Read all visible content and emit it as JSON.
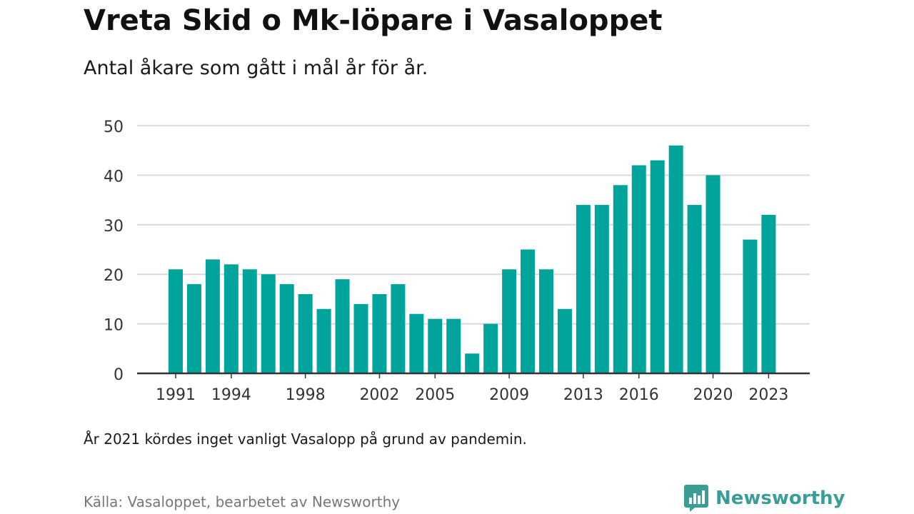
{
  "title": "Vreta Skid o Mk-löpare i Vasaloppet",
  "subtitle": "Antal åkare som gått i mål år för år.",
  "note": "År 2021 kördes inget vanligt Vasalopp på grund av pandemin.",
  "source": "Källa: Vasaloppet, bearbetet av Newsworthy",
  "brand": {
    "name": "Newsworthy",
    "icon": "newsworthy-logo-icon"
  },
  "colors": {
    "bar": "#00a49a",
    "grid": "#d9d9d9",
    "axis": "#333333",
    "brand": "#3a9e97"
  },
  "chart_data": {
    "type": "bar",
    "x": [
      1991,
      1992,
      1993,
      1994,
      1995,
      1996,
      1997,
      1998,
      1999,
      2000,
      2001,
      2002,
      2003,
      2004,
      2005,
      2006,
      2007,
      2008,
      2009,
      2010,
      2011,
      2012,
      2013,
      2014,
      2015,
      2016,
      2017,
      2018,
      2019,
      2020,
      2021,
      2022,
      2023
    ],
    "values": [
      21,
      18,
      23,
      22,
      21,
      20,
      18,
      16,
      13,
      19,
      14,
      16,
      18,
      12,
      11,
      11,
      4,
      10,
      21,
      25,
      21,
      13,
      34,
      34,
      38,
      42,
      43,
      46,
      34,
      40,
      null,
      27,
      32
    ],
    "x_tick_labels": [
      "1991",
      "1994",
      "1998",
      "2002",
      "2005",
      "2009",
      "2013",
      "2016",
      "2020",
      "2023"
    ],
    "y_ticks": [
      0,
      10,
      20,
      30,
      40,
      50
    ],
    "ylim": [
      0,
      50
    ],
    "xlabel": "",
    "ylabel": "",
    "grid": true,
    "legend": "none"
  }
}
